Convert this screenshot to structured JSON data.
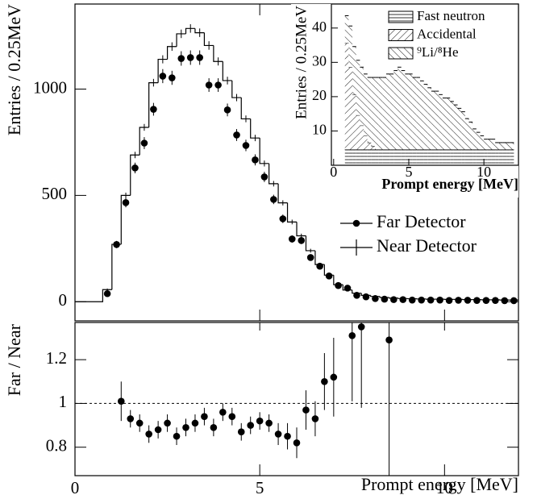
{
  "chart_data": [
    {
      "type": "histogram",
      "ylabel": "Entries / 0.25MeV",
      "xlim": [
        0,
        12
      ],
      "ylim": [
        -90,
        1400
      ],
      "yticks": [
        0,
        500,
        1000
      ],
      "legend": "center right",
      "bins": [
        0.75,
        1,
        1.25,
        1.5,
        1.75,
        2,
        2.25,
        2.5,
        2.75,
        3,
        3.25,
        3.5,
        3.75,
        4,
        4.25,
        4.5,
        4.75,
        5,
        5.25,
        5.5,
        5.75,
        6,
        6.25,
        6.5,
        6.75,
        7,
        7.25,
        7.5,
        7.75,
        8,
        8.25,
        8.5,
        8.75,
        9,
        9.25,
        9.5,
        9.75,
        10,
        10.25,
        10.5,
        10.75,
        11,
        11.25,
        11.5,
        11.75,
        12
      ],
      "series": [
        {
          "name": "Far Detector",
          "marker": "circle",
          "color": "#000000",
          "x": [
            0.875,
            1.125,
            1.375,
            1.625,
            1.875,
            2.125,
            2.375,
            2.625,
            2.875,
            3.125,
            3.375,
            3.625,
            3.875,
            4.125,
            4.375,
            4.625,
            4.875,
            5.125,
            5.375,
            5.625,
            5.875,
            6.125,
            6.375,
            6.625,
            6.875,
            7.125,
            7.375,
            7.625,
            7.875,
            8.125,
            8.375,
            8.625,
            8.875,
            9.125,
            9.375,
            9.625,
            9.875,
            10.125,
            10.375,
            10.625,
            10.875,
            11.125,
            11.375,
            11.625,
            11.875
          ],
          "values": [
            38,
            269,
            466,
            629,
            746,
            905,
            1061,
            1053,
            1144,
            1148,
            1148,
            1019,
            1019,
            902,
            784,
            735,
            667,
            587,
            481,
            390,
            295,
            288,
            208,
            167,
            121,
            76,
            64,
            30,
            23,
            15,
            12,
            10,
            10,
            8,
            8,
            8,
            8,
            6,
            7,
            7,
            6,
            6,
            6,
            5,
            5
          ],
          "errors": [
            8,
            17,
            22,
            25,
            28,
            30,
            33,
            33,
            34,
            34,
            34,
            32,
            32,
            30,
            28,
            27,
            26,
            24,
            22,
            20,
            17,
            17,
            14,
            13,
            11,
            9,
            8,
            6,
            5,
            4,
            4,
            3,
            3,
            3,
            3,
            3,
            3,
            2,
            3,
            3,
            2,
            2,
            2,
            2,
            2
          ]
        },
        {
          "name": "Near Detector",
          "marker": "step",
          "color": "#000000",
          "values": [
            57,
            270,
            500,
            690,
            820,
            1030,
            1140,
            1200,
            1260,
            1285,
            1265,
            1205,
            1130,
            1040,
            960,
            860,
            770,
            650,
            555,
            465,
            375,
            310,
            240,
            175,
            125,
            80,
            55,
            40,
            30,
            25,
            20,
            17,
            15,
            14,
            13,
            12,
            12,
            11,
            11,
            10,
            10,
            9,
            9,
            8,
            8
          ],
          "errors": [
            5,
            10,
            13,
            15,
            16,
            18,
            19,
            20,
            20,
            20,
            20,
            20,
            19,
            18,
            17,
            16,
            15,
            14,
            13,
            12,
            11,
            10,
            9,
            7,
            6,
            5,
            4,
            4,
            3,
            3,
            3,
            2,
            2,
            2,
            2,
            2,
            2,
            2,
            2,
            2,
            2,
            2,
            2,
            2,
            2
          ]
        }
      ]
    },
    {
      "type": "scatter",
      "ylabel": "Far / Near",
      "xlabel": "Prompt energy [MeV]",
      "xlim": [
        0,
        12
      ],
      "ylim": [
        0.67,
        1.37
      ],
      "xticks": [
        0,
        5,
        10
      ],
      "yticks": [
        0.8,
        1,
        1.2
      ],
      "reference_line": 1,
      "series": [
        {
          "color": "#000000",
          "x": [
            1.25,
            1.5,
            1.75,
            2,
            2.25,
            2.5,
            2.75,
            3,
            3.25,
            3.5,
            3.75,
            4,
            4.25,
            4.5,
            4.75,
            5,
            5.25,
            5.5,
            5.75,
            6,
            6.25,
            6.5,
            6.75,
            7,
            7.5,
            7.75,
            8.5
          ],
          "values": [
            1.01,
            0.93,
            0.91,
            0.86,
            0.88,
            0.91,
            0.85,
            0.89,
            0.91,
            0.94,
            0.89,
            0.96,
            0.94,
            0.87,
            0.9,
            0.92,
            0.91,
            0.86,
            0.85,
            0.82,
            0.97,
            0.93,
            1.1,
            1.12,
            1.31,
            1.35,
            1.29
          ],
          "errors": [
            0.09,
            0.04,
            0.04,
            0.04,
            0.04,
            0.04,
            0.04,
            0.04,
            0.04,
            0.04,
            0.04,
            0.04,
            0.04,
            0.04,
            0.04,
            0.04,
            0.04,
            0.05,
            0.06,
            0.07,
            0.09,
            0.08,
            0.13,
            0.18,
            0.3,
            0.37,
            0.65
          ]
        }
      ]
    },
    {
      "type": "stacked-histogram",
      "ylabel": "Entries / 0.25MeV",
      "xlabel": "Prompt energy [MeV]",
      "xlim": [
        -0.15,
        12.3
      ],
      "ylim": [
        0,
        47
      ],
      "xticks": [
        0,
        5,
        10
      ],
      "yticks": [
        10,
        20,
        30,
        40
      ],
      "legend": "upper right",
      "bins": [
        0.75,
        1,
        1.25,
        1.5,
        1.75,
        2,
        2.25,
        2.5,
        2.75,
        3,
        3.25,
        3.5,
        3.75,
        4,
        4.25,
        4.5,
        4.75,
        5,
        5.25,
        5.5,
        5.75,
        6,
        6.25,
        6.5,
        6.75,
        7,
        7.25,
        7.5,
        7.75,
        8,
        8.25,
        8.5,
        8.75,
        9,
        9.25,
        9.5,
        9.75,
        10,
        10.25,
        10.5,
        10.75,
        11,
        11.25,
        11.5,
        11.75,
        12
      ],
      "series": [
        {
          "name": "Fast neutron",
          "hatch": "-",
          "color": "#000000",
          "values": [
            4.6,
            4.6,
            4.6,
            4.6,
            4.6,
            4.6,
            4.6,
            4.6,
            4.6,
            4.6,
            4.6,
            4.6,
            4.6,
            4.6,
            4.6,
            4.6,
            4.6,
            4.6,
            4.6,
            4.6,
            4.6,
            4.6,
            4.6,
            4.6,
            4.6,
            4.6,
            4.6,
            4.6,
            4.6,
            4.6,
            4.6,
            4.6,
            4.6,
            4.6,
            4.6,
            4.6,
            4.6,
            4.6,
            4.6,
            4.6,
            4.6,
            4.6,
            4.6,
            4.6,
            4.6
          ]
        },
        {
          "name": "Accidental",
          "hatch": "/",
          "color": "#000000",
          "values": [
            31,
            24,
            16,
            10,
            7,
            4,
            2,
            1,
            0,
            0,
            0,
            0,
            0,
            0,
            0,
            0,
            0,
            0,
            0,
            0,
            0,
            0,
            0,
            0,
            0,
            0,
            0,
            0,
            0,
            0,
            0,
            0,
            0,
            0,
            0,
            0,
            0,
            0,
            0,
            0,
            0,
            0,
            0,
            0,
            0
          ]
        },
        {
          "name": "⁹Li/⁸He",
          "hatch": "\\",
          "color": "#000000",
          "values": [
            8,
            12,
            14,
            16,
            17,
            18,
            19,
            20,
            21,
            21,
            21,
            22,
            22,
            23,
            24,
            23,
            22,
            22,
            21,
            21,
            20,
            19,
            18,
            17,
            17,
            16,
            15,
            15,
            14,
            13,
            12,
            11,
            9,
            8,
            6,
            5,
            4,
            3,
            3,
            3,
            2,
            2,
            2,
            2,
            2
          ]
        }
      ]
    }
  ]
}
